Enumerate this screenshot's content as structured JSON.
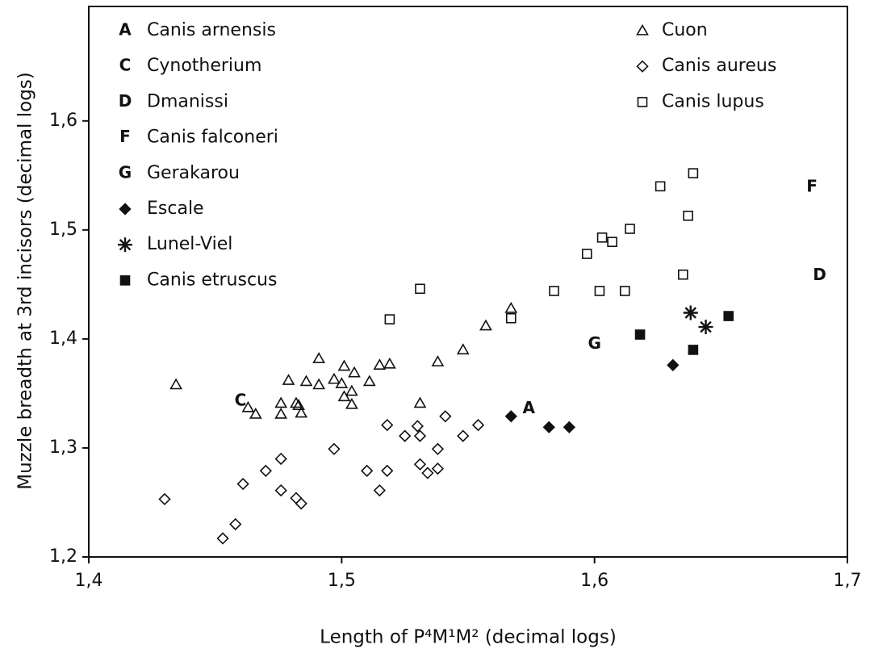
{
  "chart_data": {
    "type": "scatter",
    "x_label": "Length of P⁴M¹M²  (decimal logs)",
    "y_label": "Muzzle breadth at 3rd incisors (decimal logs)",
    "xlim": [
      1.4,
      1.7
    ],
    "ylim": [
      1.2,
      1.705
    ],
    "xticks": [
      {
        "value": 1.4,
        "label": "1,4"
      },
      {
        "value": 1.5,
        "label": "1,5"
      },
      {
        "value": 1.6,
        "label": "1,6"
      },
      {
        "value": 1.7,
        "label": "1,7"
      }
    ],
    "yticks": [
      {
        "value": 1.2,
        "label": "1,2"
      },
      {
        "value": 1.3,
        "label": "1,3"
      },
      {
        "value": 1.4,
        "label": "1,4"
      },
      {
        "value": 1.5,
        "label": "1,5"
      },
      {
        "value": 1.6,
        "label": "1,6"
      }
    ],
    "letter_keys": [
      {
        "letter": "A",
        "name": "Canis arnensis"
      },
      {
        "letter": "C",
        "name": "Cynotherium"
      },
      {
        "letter": "D",
        "name": "Dmanissi"
      },
      {
        "letter": "F",
        "name": "Canis falconeri"
      },
      {
        "letter": "G",
        "name": "Gerakarou"
      }
    ],
    "annotations": [
      {
        "text": "A",
        "x": 1.574,
        "y": 1.336
      },
      {
        "text": "C",
        "x": 1.46,
        "y": 1.343
      },
      {
        "text": "D",
        "x": 1.689,
        "y": 1.458
      },
      {
        "text": "F",
        "x": 1.686,
        "y": 1.539
      },
      {
        "text": "G",
        "x": 1.6,
        "y": 1.395
      }
    ],
    "series": [
      {
        "name": "Cuon",
        "marker": "triangle-open",
        "color": "#111111",
        "x": [
          1.4345,
          1.463,
          1.466,
          1.476,
          1.476,
          1.479,
          1.482,
          1.483,
          1.484,
          1.491,
          1.486,
          1.491,
          1.497,
          1.5,
          1.501,
          1.505,
          1.501,
          1.504,
          1.504,
          1.511,
          1.515,
          1.519,
          1.531,
          1.538,
          1.548,
          1.557,
          1.567
        ],
        "values": [
          1.358,
          1.337,
          1.331,
          1.341,
          1.331,
          1.362,
          1.341,
          1.339,
          1.332,
          1.382,
          1.361,
          1.358,
          1.363,
          1.359,
          1.375,
          1.369,
          1.347,
          1.352,
          1.34,
          1.361,
          1.376,
          1.377,
          1.341,
          1.379,
          1.39,
          1.412,
          1.428
        ]
      },
      {
        "name": "Canis aureus",
        "marker": "diamond-open",
        "color": "#111111",
        "x": [
          1.43,
          1.453,
          1.458,
          1.461,
          1.47,
          1.476,
          1.476,
          1.482,
          1.484,
          1.497,
          1.51,
          1.515,
          1.518,
          1.518,
          1.525,
          1.53,
          1.531,
          1.531,
          1.534,
          1.538,
          1.538,
          1.541,
          1.548,
          1.554
        ],
        "values": [
          1.253,
          1.217,
          1.23,
          1.267,
          1.279,
          1.29,
          1.261,
          1.254,
          1.249,
          1.299,
          1.279,
          1.261,
          1.279,
          1.321,
          1.311,
          1.32,
          1.311,
          1.285,
          1.277,
          1.281,
          1.299,
          1.329,
          1.311,
          1.321
        ]
      },
      {
        "name": "Canis lupus",
        "marker": "square-open",
        "color": "#111111",
        "x": [
          1.519,
          1.531,
          1.567,
          1.584,
          1.597,
          1.602,
          1.603,
          1.607,
          1.612,
          1.614,
          1.626,
          1.635,
          1.637,
          1.639
        ],
        "values": [
          1.418,
          1.446,
          1.419,
          1.444,
          1.478,
          1.444,
          1.493,
          1.489,
          1.444,
          1.501,
          1.54,
          1.459,
          1.513,
          1.552
        ]
      },
      {
        "name": "Escale",
        "marker": "diamond-filled",
        "color": "#111111",
        "x": [
          1.567,
          1.582,
          1.59,
          1.631
        ],
        "values": [
          1.329,
          1.319,
          1.319,
          1.376
        ]
      },
      {
        "name": "Lunel-Viel",
        "marker": "star",
        "color": "#111111",
        "x": [
          1.638,
          1.644
        ],
        "values": [
          1.424,
          1.411
        ]
      },
      {
        "name": "Canis etruscus",
        "marker": "square-filled",
        "color": "#111111",
        "x": [
          1.618,
          1.639,
          1.653
        ],
        "values": [
          1.404,
          1.39,
          1.421
        ]
      }
    ]
  }
}
